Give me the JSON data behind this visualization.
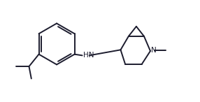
{
  "bg_color": "#ffffff",
  "line_color": "#1c1c2e",
  "line_width": 1.4,
  "font_size": 7.5,
  "figsize": [
    2.86,
    1.46
  ],
  "dpi": 100,
  "xlim": [
    0.0,
    8.5
  ],
  "ylim": [
    0.5,
    4.5
  ]
}
